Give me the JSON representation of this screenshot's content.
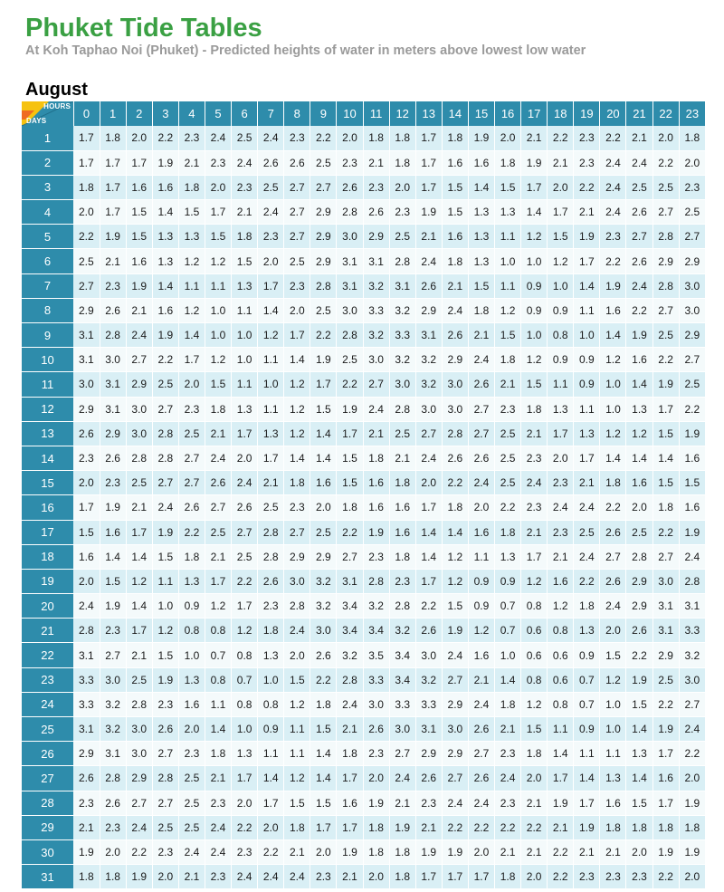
{
  "page": {
    "title": "Phuket Tide Tables",
    "subtitle": "At Koh Taphao Noi (Phuket) - Predicted heights of water in meters above lowest low water",
    "month": "August"
  },
  "table": {
    "corner_hours_label": "HOURS",
    "corner_days_label": "DAYS",
    "colors": {
      "header_bg": "#2e8cab",
      "odd_row": "#d9eff5",
      "even_row": "#f4fafb",
      "arrow_yellow": "#f6c20f",
      "arrow_orange": "#ef6a22"
    },
    "hours": [
      "0",
      "1",
      "2",
      "3",
      "4",
      "5",
      "6",
      "7",
      "8",
      "9",
      "10",
      "11",
      "12",
      "13",
      "14",
      "15",
      "16",
      "17",
      "18",
      "19",
      "20",
      "21",
      "22",
      "23"
    ],
    "rows": [
      {
        "day": "1",
        "values": [
          "1.7",
          "1.8",
          "2.0",
          "2.2",
          "2.3",
          "2.4",
          "2.5",
          "2.4",
          "2.3",
          "2.2",
          "2.0",
          "1.8",
          "1.8",
          "1.7",
          "1.8",
          "1.9",
          "2.0",
          "2.1",
          "2.2",
          "2.3",
          "2.2",
          "2.1",
          "2.0",
          "1.8"
        ]
      },
      {
        "day": "2",
        "values": [
          "1.7",
          "1.7",
          "1.7",
          "1.9",
          "2.1",
          "2.3",
          "2.4",
          "2.6",
          "2.6",
          "2.5",
          "2.3",
          "2.1",
          "1.8",
          "1.7",
          "1.6",
          "1.6",
          "1.8",
          "1.9",
          "2.1",
          "2.3",
          "2.4",
          "2.4",
          "2.2",
          "2.0"
        ]
      },
      {
        "day": "3",
        "values": [
          "1.8",
          "1.7",
          "1.6",
          "1.6",
          "1.8",
          "2.0",
          "2.3",
          "2.5",
          "2.7",
          "2.7",
          "2.6",
          "2.3",
          "2.0",
          "1.7",
          "1.5",
          "1.4",
          "1.5",
          "1.7",
          "2.0",
          "2.2",
          "2.4",
          "2.5",
          "2.5",
          "2.3"
        ]
      },
      {
        "day": "4",
        "values": [
          "2.0",
          "1.7",
          "1.5",
          "1.4",
          "1.5",
          "1.7",
          "2.1",
          "2.4",
          "2.7",
          "2.9",
          "2.8",
          "2.6",
          "2.3",
          "1.9",
          "1.5",
          "1.3",
          "1.3",
          "1.4",
          "1.7",
          "2.1",
          "2.4",
          "2.6",
          "2.7",
          "2.5"
        ]
      },
      {
        "day": "5",
        "values": [
          "2.2",
          "1.9",
          "1.5",
          "1.3",
          "1.3",
          "1.5",
          "1.8",
          "2.3",
          "2.7",
          "2.9",
          "3.0",
          "2.9",
          "2.5",
          "2.1",
          "1.6",
          "1.3",
          "1.1",
          "1.2",
          "1.5",
          "1.9",
          "2.3",
          "2.7",
          "2.8",
          "2.7"
        ]
      },
      {
        "day": "6",
        "values": [
          "2.5",
          "2.1",
          "1.6",
          "1.3",
          "1.2",
          "1.2",
          "1.5",
          "2.0",
          "2.5",
          "2.9",
          "3.1",
          "3.1",
          "2.8",
          "2.4",
          "1.8",
          "1.3",
          "1.0",
          "1.0",
          "1.2",
          "1.7",
          "2.2",
          "2.6",
          "2.9",
          "2.9"
        ]
      },
      {
        "day": "7",
        "values": [
          "2.7",
          "2.3",
          "1.9",
          "1.4",
          "1.1",
          "1.1",
          "1.3",
          "1.7",
          "2.3",
          "2.8",
          "3.1",
          "3.2",
          "3.1",
          "2.6",
          "2.1",
          "1.5",
          "1.1",
          "0.9",
          "1.0",
          "1.4",
          "1.9",
          "2.4",
          "2.8",
          "3.0"
        ]
      },
      {
        "day": "8",
        "values": [
          "2.9",
          "2.6",
          "2.1",
          "1.6",
          "1.2",
          "1.0",
          "1.1",
          "1.4",
          "2.0",
          "2.5",
          "3.0",
          "3.3",
          "3.2",
          "2.9",
          "2.4",
          "1.8",
          "1.2",
          "0.9",
          "0.9",
          "1.1",
          "1.6",
          "2.2",
          "2.7",
          "3.0"
        ]
      },
      {
        "day": "9",
        "values": [
          "3.1",
          "2.8",
          "2.4",
          "1.9",
          "1.4",
          "1.0",
          "1.0",
          "1.2",
          "1.7",
          "2.2",
          "2.8",
          "3.2",
          "3.3",
          "3.1",
          "2.6",
          "2.1",
          "1.5",
          "1.0",
          "0.8",
          "1.0",
          "1.4",
          "1.9",
          "2.5",
          "2.9"
        ]
      },
      {
        "day": "10",
        "values": [
          "3.1",
          "3.0",
          "2.7",
          "2.2",
          "1.7",
          "1.2",
          "1.0",
          "1.1",
          "1.4",
          "1.9",
          "2.5",
          "3.0",
          "3.2",
          "3.2",
          "2.9",
          "2.4",
          "1.8",
          "1.2",
          "0.9",
          "0.9",
          "1.2",
          "1.6",
          "2.2",
          "2.7"
        ]
      },
      {
        "day": "11",
        "values": [
          "3.0",
          "3.1",
          "2.9",
          "2.5",
          "2.0",
          "1.5",
          "1.1",
          "1.0",
          "1.2",
          "1.7",
          "2.2",
          "2.7",
          "3.0",
          "3.2",
          "3.0",
          "2.6",
          "2.1",
          "1.5",
          "1.1",
          "0.9",
          "1.0",
          "1.4",
          "1.9",
          "2.5"
        ]
      },
      {
        "day": "12",
        "values": [
          "2.9",
          "3.1",
          "3.0",
          "2.7",
          "2.3",
          "1.8",
          "1.3",
          "1.1",
          "1.2",
          "1.5",
          "1.9",
          "2.4",
          "2.8",
          "3.0",
          "3.0",
          "2.7",
          "2.3",
          "1.8",
          "1.3",
          "1.1",
          "1.0",
          "1.3",
          "1.7",
          "2.2"
        ]
      },
      {
        "day": "13",
        "values": [
          "2.6",
          "2.9",
          "3.0",
          "2.8",
          "2.5",
          "2.1",
          "1.7",
          "1.3",
          "1.2",
          "1.4",
          "1.7",
          "2.1",
          "2.5",
          "2.7",
          "2.8",
          "2.7",
          "2.5",
          "2.1",
          "1.7",
          "1.3",
          "1.2",
          "1.2",
          "1.5",
          "1.9"
        ]
      },
      {
        "day": "14",
        "values": [
          "2.3",
          "2.6",
          "2.8",
          "2.8",
          "2.7",
          "2.4",
          "2.0",
          "1.7",
          "1.4",
          "1.4",
          "1.5",
          "1.8",
          "2.1",
          "2.4",
          "2.6",
          "2.6",
          "2.5",
          "2.3",
          "2.0",
          "1.7",
          "1.4",
          "1.4",
          "1.4",
          "1.6"
        ]
      },
      {
        "day": "15",
        "values": [
          "2.0",
          "2.3",
          "2.5",
          "2.7",
          "2.7",
          "2.6",
          "2.4",
          "2.1",
          "1.8",
          "1.6",
          "1.5",
          "1.6",
          "1.8",
          "2.0",
          "2.2",
          "2.4",
          "2.5",
          "2.4",
          "2.3",
          "2.1",
          "1.8",
          "1.6",
          "1.5",
          "1.5"
        ]
      },
      {
        "day": "16",
        "values": [
          "1.7",
          "1.9",
          "2.1",
          "2.4",
          "2.6",
          "2.7",
          "2.6",
          "2.5",
          "2.3",
          "2.0",
          "1.8",
          "1.6",
          "1.6",
          "1.7",
          "1.8",
          "2.0",
          "2.2",
          "2.3",
          "2.4",
          "2.4",
          "2.2",
          "2.0",
          "1.8",
          "1.6"
        ]
      },
      {
        "day": "17",
        "values": [
          "1.5",
          "1.6",
          "1.7",
          "1.9",
          "2.2",
          "2.5",
          "2.7",
          "2.8",
          "2.7",
          "2.5",
          "2.2",
          "1.9",
          "1.6",
          "1.4",
          "1.4",
          "1.6",
          "1.8",
          "2.1",
          "2.3",
          "2.5",
          "2.6",
          "2.5",
          "2.2",
          "1.9"
        ]
      },
      {
        "day": "18",
        "values": [
          "1.6",
          "1.4",
          "1.4",
          "1.5",
          "1.8",
          "2.1",
          "2.5",
          "2.8",
          "2.9",
          "2.9",
          "2.7",
          "2.3",
          "1.8",
          "1.4",
          "1.2",
          "1.1",
          "1.3",
          "1.7",
          "2.1",
          "2.4",
          "2.7",
          "2.8",
          "2.7",
          "2.4"
        ]
      },
      {
        "day": "19",
        "values": [
          "2.0",
          "1.5",
          "1.2",
          "1.1",
          "1.3",
          "1.7",
          "2.2",
          "2.6",
          "3.0",
          "3.2",
          "3.1",
          "2.8",
          "2.3",
          "1.7",
          "1.2",
          "0.9",
          "0.9",
          "1.2",
          "1.6",
          "2.2",
          "2.6",
          "2.9",
          "3.0",
          "2.8"
        ]
      },
      {
        "day": "20",
        "values": [
          "2.4",
          "1.9",
          "1.4",
          "1.0",
          "0.9",
          "1.2",
          "1.7",
          "2.3",
          "2.8",
          "3.2",
          "3.4",
          "3.2",
          "2.8",
          "2.2",
          "1.5",
          "0.9",
          "0.7",
          "0.8",
          "1.2",
          "1.8",
          "2.4",
          "2.9",
          "3.1",
          "3.1"
        ]
      },
      {
        "day": "21",
        "values": [
          "2.8",
          "2.3",
          "1.7",
          "1.2",
          "0.8",
          "0.8",
          "1.2",
          "1.8",
          "2.4",
          "3.0",
          "3.4",
          "3.4",
          "3.2",
          "2.6",
          "1.9",
          "1.2",
          "0.7",
          "0.6",
          "0.8",
          "1.3",
          "2.0",
          "2.6",
          "3.1",
          "3.3"
        ]
      },
      {
        "day": "22",
        "values": [
          "3.1",
          "2.7",
          "2.1",
          "1.5",
          "1.0",
          "0.7",
          "0.8",
          "1.3",
          "2.0",
          "2.6",
          "3.2",
          "3.5",
          "3.4",
          "3.0",
          "2.4",
          "1.6",
          "1.0",
          "0.6",
          "0.6",
          "0.9",
          "1.5",
          "2.2",
          "2.9",
          "3.2"
        ]
      },
      {
        "day": "23",
        "values": [
          "3.3",
          "3.0",
          "2.5",
          "1.9",
          "1.3",
          "0.8",
          "0.7",
          "1.0",
          "1.5",
          "2.2",
          "2.8",
          "3.3",
          "3.4",
          "3.2",
          "2.7",
          "2.1",
          "1.4",
          "0.8",
          "0.6",
          "0.7",
          "1.2",
          "1.9",
          "2.5",
          "3.0"
        ]
      },
      {
        "day": "24",
        "values": [
          "3.3",
          "3.2",
          "2.8",
          "2.3",
          "1.6",
          "1.1",
          "0.8",
          "0.8",
          "1.2",
          "1.8",
          "2.4",
          "3.0",
          "3.3",
          "3.3",
          "2.9",
          "2.4",
          "1.8",
          "1.2",
          "0.8",
          "0.7",
          "1.0",
          "1.5",
          "2.2",
          "2.7"
        ]
      },
      {
        "day": "25",
        "values": [
          "3.1",
          "3.2",
          "3.0",
          "2.6",
          "2.0",
          "1.4",
          "1.0",
          "0.9",
          "1.1",
          "1.5",
          "2.1",
          "2.6",
          "3.0",
          "3.1",
          "3.0",
          "2.6",
          "2.1",
          "1.5",
          "1.1",
          "0.9",
          "1.0",
          "1.4",
          "1.9",
          "2.4"
        ]
      },
      {
        "day": "26",
        "values": [
          "2.9",
          "3.1",
          "3.0",
          "2.7",
          "2.3",
          "1.8",
          "1.3",
          "1.1",
          "1.1",
          "1.4",
          "1.8",
          "2.3",
          "2.7",
          "2.9",
          "2.9",
          "2.7",
          "2.3",
          "1.8",
          "1.4",
          "1.1",
          "1.1",
          "1.3",
          "1.7",
          "2.2"
        ]
      },
      {
        "day": "27",
        "values": [
          "2.6",
          "2.8",
          "2.9",
          "2.8",
          "2.5",
          "2.1",
          "1.7",
          "1.4",
          "1.2",
          "1.4",
          "1.7",
          "2.0",
          "2.4",
          "2.6",
          "2.7",
          "2.6",
          "2.4",
          "2.0",
          "1.7",
          "1.4",
          "1.3",
          "1.4",
          "1.6",
          "2.0"
        ]
      },
      {
        "day": "28",
        "values": [
          "2.3",
          "2.6",
          "2.7",
          "2.7",
          "2.5",
          "2.3",
          "2.0",
          "1.7",
          "1.5",
          "1.5",
          "1.6",
          "1.9",
          "2.1",
          "2.3",
          "2.4",
          "2.4",
          "2.3",
          "2.1",
          "1.9",
          "1.7",
          "1.6",
          "1.5",
          "1.7",
          "1.9"
        ]
      },
      {
        "day": "29",
        "values": [
          "2.1",
          "2.3",
          "2.4",
          "2.5",
          "2.5",
          "2.4",
          "2.2",
          "2.0",
          "1.8",
          "1.7",
          "1.7",
          "1.8",
          "1.9",
          "2.1",
          "2.2",
          "2.2",
          "2.2",
          "2.2",
          "2.1",
          "1.9",
          "1.8",
          "1.8",
          "1.8",
          "1.8"
        ]
      },
      {
        "day": "30",
        "values": [
          "1.9",
          "2.0",
          "2.2",
          "2.3",
          "2.4",
          "2.4",
          "2.3",
          "2.2",
          "2.1",
          "2.0",
          "1.9",
          "1.8",
          "1.8",
          "1.9",
          "1.9",
          "2.0",
          "2.1",
          "2.1",
          "2.2",
          "2.1",
          "2.1",
          "2.0",
          "1.9",
          "1.9"
        ]
      },
      {
        "day": "31",
        "values": [
          "1.8",
          "1.8",
          "1.9",
          "2.0",
          "2.1",
          "2.3",
          "2.4",
          "2.4",
          "2.4",
          "2.3",
          "2.1",
          "2.0",
          "1.8",
          "1.7",
          "1.7",
          "1.7",
          "1.8",
          "2.0",
          "2.2",
          "2.3",
          "2.3",
          "2.3",
          "2.2",
          "2.0"
        ]
      }
    ]
  }
}
